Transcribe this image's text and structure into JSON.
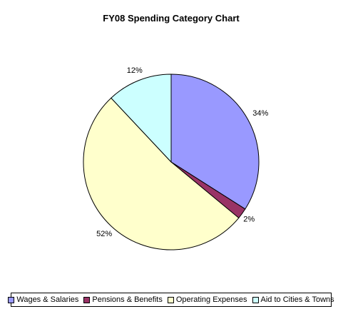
{
  "chart_data": {
    "type": "pie",
    "title": "FY08 Spending Category Chart",
    "categories": [
      "Wages & Salaries",
      "Pensions & Benefits",
      "Operating Expenses",
      "Aid to Cities & Towns"
    ],
    "values": [
      34,
      2,
      52,
      12
    ],
    "labels": [
      "34%",
      "2%",
      "52%",
      "12%"
    ],
    "colors": [
      "#9999FF",
      "#993366",
      "#FFFFCC",
      "#CCFFFF"
    ],
    "legend_position": "bottom"
  }
}
